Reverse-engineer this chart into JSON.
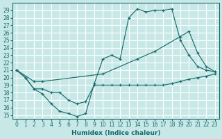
{
  "xlabel": "Humidex (Indice chaleur)",
  "bg_color": "#c8e8e8",
  "line_color": "#1a6b6b",
  "grid_color": "#ffffff",
  "xlim": [
    -0.5,
    23.5
  ],
  "ylim": [
    14.5,
    30.0
  ],
  "xticks": [
    0,
    1,
    2,
    3,
    4,
    5,
    6,
    7,
    8,
    9,
    10,
    11,
    12,
    13,
    14,
    15,
    16,
    17,
    18,
    19,
    20,
    21,
    22,
    23
  ],
  "yticks": [
    15,
    16,
    17,
    18,
    19,
    20,
    21,
    22,
    23,
    24,
    25,
    26,
    27,
    28,
    29
  ],
  "line1_x": [
    0,
    1,
    2,
    3,
    4,
    5,
    6,
    7,
    8,
    9,
    10,
    11,
    12,
    13,
    14,
    15,
    16,
    17,
    18,
    19,
    20,
    21,
    22,
    23
  ],
  "line1_y": [
    21.0,
    20.0,
    18.5,
    17.8,
    16.5,
    15.5,
    15.2,
    14.8,
    15.2,
    19.2,
    22.5,
    23.0,
    22.5,
    28.0,
    29.2,
    28.8,
    29.0,
    29.0,
    29.2,
    25.0,
    23.0,
    21.5,
    21.0,
    20.8
  ],
  "line2_x": [
    0,
    1,
    2,
    3,
    4,
    5,
    6,
    7,
    8,
    9,
    10,
    11,
    12,
    13,
    14,
    15,
    16,
    17,
    18,
    19,
    20,
    21,
    22,
    23
  ],
  "line2_y": [
    21.0,
    20.0,
    18.5,
    18.5,
    18.0,
    18.0,
    17.0,
    16.5,
    16.8,
    19.0,
    19.0,
    19.0,
    19.0,
    19.0,
    19.0,
    19.0,
    19.0,
    19.0,
    19.2,
    19.5,
    19.8,
    20.0,
    20.2,
    20.5
  ],
  "line3_x": [
    0,
    2,
    3,
    10,
    14,
    16,
    19,
    20,
    21,
    22,
    23
  ],
  "line3_y": [
    21.0,
    19.5,
    19.5,
    20.5,
    22.5,
    23.5,
    25.5,
    26.2,
    23.3,
    21.5,
    20.8
  ]
}
